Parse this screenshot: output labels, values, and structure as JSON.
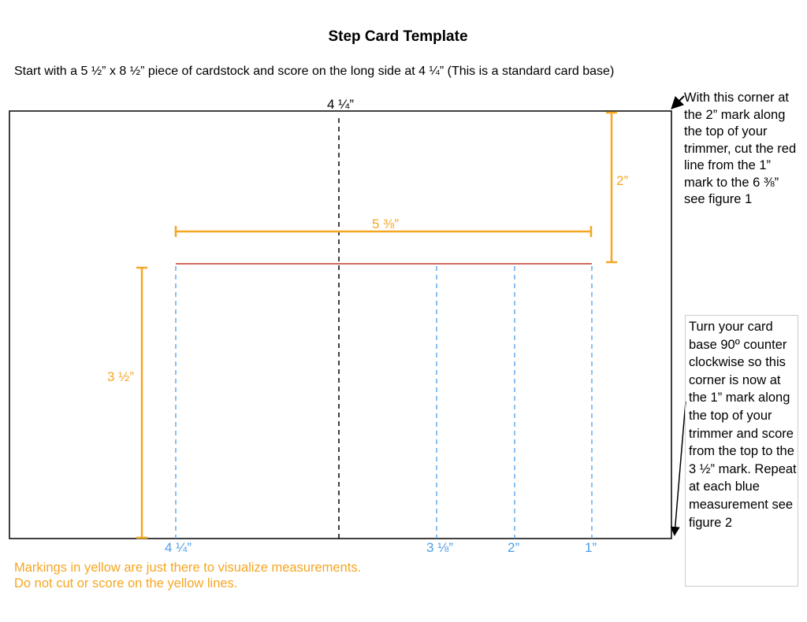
{
  "title": "Step Card Template",
  "intro": "Start with a 5 ½” x 8 ½” piece of cardstock and score on the long side at 4 ¼” (This is a standard card base)",
  "colors": {
    "card_outline": "#000000",
    "center_fold": "#000000",
    "cut_line": "#C0392B",
    "score_lines": "#4A9EEA",
    "measurement": "#F5A623"
  },
  "labels": {
    "center_fold": "4 ¼”",
    "horizontal_measure": "5 ⅜”",
    "top_right_measure": "2”",
    "left_measure": "3 ½”",
    "score_marks": [
      "4 ¼”",
      "3 ⅛”",
      "2”",
      "1”"
    ]
  },
  "notes": {
    "corner_note": "With this corner at the 2” mark along the top of your trimmer, cut the red line from the  1” mark to the 6 ⅜” see figure 1",
    "turn_note": "Turn your card base 90º counter clockwise so this corner is now at the 1” mark along the top of your trimmer and score from the top to the 3 ½” mark. Repeat at each blue measurement see figure 2"
  },
  "legend": {
    "line1": "Markings in yellow are just there to visualize measurements.",
    "line2": "Do not cut or score on the yellow lines."
  }
}
